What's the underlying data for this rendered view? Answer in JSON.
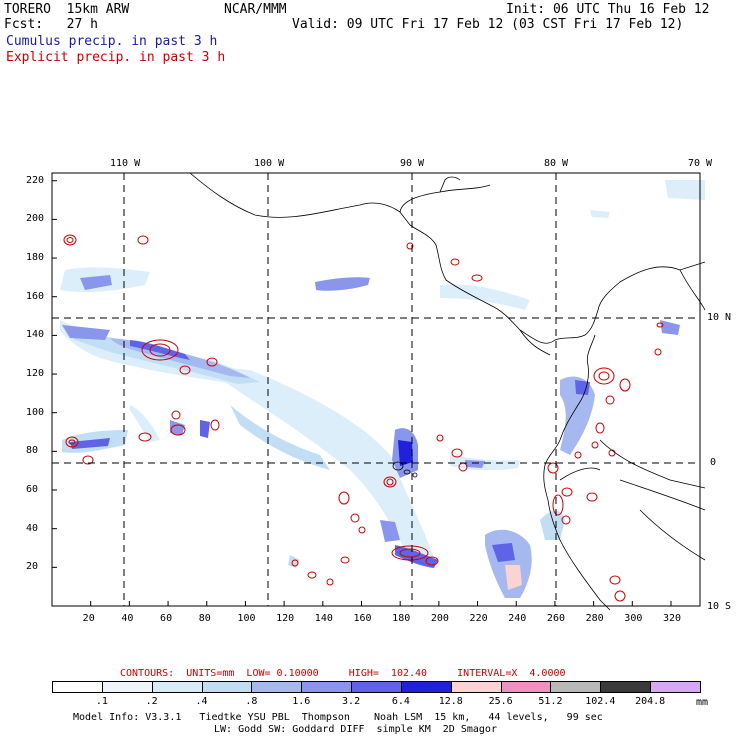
{
  "header": {
    "model": "TORERO  15km ARW",
    "org": "NCAR/MMM",
    "init": "Init: 06 UTC Thu 16 Feb 12",
    "fcst": "Fcst:   27 h",
    "valid": "Valid: 09 UTC Fri 17 Feb 12 (03 CST Fri 17 Feb 12)",
    "line_cumulus": "Cumulus precip. in past 3 h",
    "line_explicit": "Explicit precip. in past 3 h"
  },
  "axes": {
    "top_lon": [
      "110 W",
      "100 W",
      "90 W",
      "80 W",
      "70 W"
    ],
    "right_lat": [
      "10 N",
      "0",
      "10 S"
    ],
    "x_ticks": [
      "20",
      "40",
      "60",
      "80",
      "100",
      "120",
      "140",
      "160",
      "180",
      "200",
      "220",
      "240",
      "260",
      "280",
      "300",
      "320"
    ],
    "y_ticks": [
      "20",
      "40",
      "60",
      "80",
      "100",
      "120",
      "140",
      "160",
      "180",
      "200",
      "220"
    ]
  },
  "contour_info": {
    "text": "CONTOURS:  UNITS=mm  LOW= 0.10000     HIGH=  102.40     INTERVAL=X  4.0000"
  },
  "colorbar": {
    "labels": [
      ".1",
      ".2",
      ".4",
      ".8",
      "1.6",
      "3.2",
      "6.4",
      "12.8",
      "25.6",
      "51.2",
      "102.4",
      "204.8"
    ],
    "unit": "mm",
    "colors": [
      "#ffffff",
      "#eef6fb",
      "#d8ecf8",
      "#c2def5",
      "#a5b8f0",
      "#8a95ec",
      "#5f63e6",
      "#2020dd",
      "#fbd3d3",
      "#f090c0",
      "#b8b8b8",
      "#3a3a3a",
      "#d8a8f8"
    ]
  },
  "footer": {
    "line1": "Model Info: V3.3.1   Tiedtke YSU PBL  Thompson    Noah LSM  15 km,   44 levels,   99 sec",
    "line2": "LW: Godd SW: Goddard DIFF  simple KM  2D Smagor"
  },
  "colors": {
    "cumulus_text": "#1a1aa6",
    "explicit_contour": "#cc0000",
    "precip_light": "#dceefa",
    "precip_mid": "#8a95ec",
    "precip_heavy": "#2020dd"
  }
}
